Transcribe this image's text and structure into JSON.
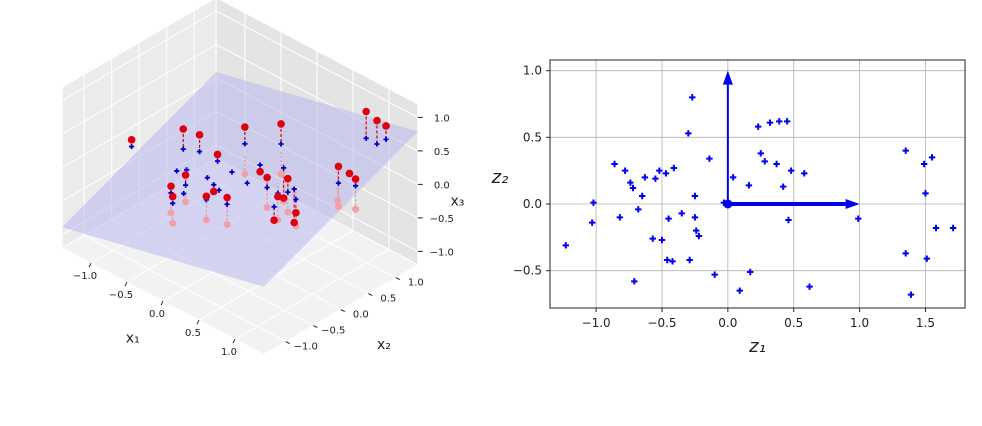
{
  "chart_data": [
    {
      "type": "scatter",
      "panel": "3d",
      "xlabel": "x₁",
      "ylabel": "x₂",
      "zlabel": "x₃",
      "xlim": [
        -1.4,
        1.4
      ],
      "ylim": [
        -1.4,
        1.4
      ],
      "zlim": [
        -1.2,
        1.2
      ],
      "xticks": [
        "−1.0",
        "−0.5",
        "0.0",
        "0.5",
        "1.0"
      ],
      "yticks": [
        "−1.0",
        "−0.5",
        "0.0",
        "0.5",
        "1.0"
      ],
      "zticks": [
        "−1.0",
        "−0.5",
        "0.0",
        "0.5",
        "1.0"
      ],
      "grid": true,
      "plane_color": "#b4b4f0",
      "series": [
        {
          "marker": "circle",
          "color": "#e0000c",
          "desc": "points above plane",
          "points": [
            [
              -1.2,
              -0.4,
              0.05
            ],
            [
              -0.75,
              -0.05,
              0.3
            ],
            [
              -0.6,
              0.05,
              0.25
            ],
            [
              -0.2,
              0.35,
              0.45
            ],
            [
              0.15,
              0.55,
              0.6
            ],
            [
              -0.45,
              -0.4,
              -0.05
            ],
            [
              -0.5,
              -0.6,
              -0.15
            ],
            [
              -0.4,
              -0.7,
              -0.2
            ],
            [
              0.3,
              0.1,
              0.1
            ],
            [
              0.55,
              0.15,
              0.2
            ],
            [
              0.95,
              1.05,
              1.0
            ],
            [
              1.1,
              1.05,
              0.95
            ],
            [
              1.15,
              1.15,
              0.85
            ],
            [
              1.1,
              0.35,
              0.6
            ],
            [
              1.3,
              0.4,
              0.5
            ],
            [
              1.1,
              0.55,
              0.4
            ],
            [
              0.05,
              -0.3,
              -0.15
            ],
            [
              -0.2,
              -0.35,
              -0.25
            ],
            [
              0.45,
              0.1,
              -0.1
            ],
            [
              0.7,
              0.1,
              -0.2
            ],
            [
              0.55,
              -0.1,
              -0.3
            ],
            [
              0.05,
              0.3,
              -0.05
            ],
            [
              -0.35,
              0.05,
              0.1
            ],
            [
              0.3,
              0.4,
              -0.35
            ],
            [
              -0.25,
              -0.15,
              -0.3
            ],
            [
              0.6,
              0.2,
              -0.45
            ]
          ]
        },
        {
          "marker": "plus",
          "color": "#0000cc",
          "desc": "projected points on plane",
          "points": [
            [
              -1.2,
              -0.4,
              -0.05
            ],
            [
              -0.75,
              -0.05,
              0.0
            ],
            [
              -0.6,
              0.05,
              0.0
            ],
            [
              -0.2,
              0.35,
              0.2
            ],
            [
              0.15,
              0.55,
              0.3
            ],
            [
              -0.45,
              -0.4,
              -0.2
            ],
            [
              -0.5,
              -0.6,
              -0.25
            ],
            [
              -0.4,
              -0.7,
              -0.3
            ],
            [
              0.3,
              0.1,
              -0.05
            ],
            [
              0.55,
              0.15,
              0.0
            ],
            [
              0.95,
              1.05,
              0.6
            ],
            [
              1.1,
              1.05,
              0.6
            ],
            [
              1.15,
              1.15,
              0.65
            ],
            [
              1.1,
              0.35,
              0.35
            ],
            [
              1.3,
              0.4,
              0.4
            ],
            [
              1.1,
              0.55,
              0.4
            ],
            [
              0.05,
              -0.3,
              -0.25
            ],
            [
              -0.2,
              -0.35,
              -0.3
            ],
            [
              0.45,
              0.1,
              -0.05
            ],
            [
              0.7,
              0.1,
              0.0
            ],
            [
              0.55,
              -0.1,
              -0.1
            ],
            [
              0.05,
              0.3,
              0.05
            ],
            [
              -0.35,
              0.05,
              0.0
            ],
            [
              0.3,
              0.4,
              0.1
            ],
            [
              -0.25,
              -0.15,
              -0.2
            ],
            [
              0.6,
              0.2,
              0.05
            ],
            [
              -0.55,
              -0.25,
              -0.1
            ],
            [
              -0.3,
              -0.2,
              -0.1
            ],
            [
              -0.15,
              0.05,
              -0.05
            ],
            [
              0.1,
              0.0,
              -0.05
            ],
            [
              -0.65,
              -0.3,
              -0.15
            ],
            [
              -0.1,
              -0.25,
              -0.15
            ],
            [
              0.9,
              0.6,
              0.35
            ],
            [
              -0.4,
              -0.5,
              -0.25
            ]
          ]
        },
        {
          "marker": "circle",
          "color": "#f0a0a8",
          "desc": "points below plane",
          "points": [
            [
              -0.2,
              0.35,
              -0.25
            ],
            [
              0.15,
              0.55,
              -0.15
            ],
            [
              -0.45,
              -0.4,
              -0.45
            ],
            [
              -0.5,
              -0.6,
              -0.55
            ],
            [
              -0.4,
              -0.7,
              -0.6
            ],
            [
              0.3,
              0.1,
              -0.35
            ],
            [
              0.55,
              0.15,
              -0.3
            ],
            [
              1.1,
              0.35,
              0.0
            ],
            [
              1.3,
              0.4,
              0.05
            ],
            [
              0.05,
              -0.3,
              -0.55
            ],
            [
              -0.2,
              -0.35,
              -0.6
            ],
            [
              0.45,
              0.1,
              -0.45
            ],
            [
              0.7,
              0.1,
              -0.4
            ],
            [
              0.3,
              0.4,
              -0.4
            ],
            [
              0.9,
              0.6,
              -0.15
            ]
          ]
        }
      ]
    },
    {
      "type": "scatter",
      "panel": "2d",
      "xlabel": "z₁",
      "ylabel": "z₂",
      "xlim": [
        -1.35,
        1.8
      ],
      "ylim": [
        -0.78,
        1.08
      ],
      "xticks": [
        -1.0,
        -0.5,
        0.0,
        0.5,
        1.0,
        1.5
      ],
      "xtick_labels": [
        "−1.0",
        "−0.5",
        "0.0",
        "0.5",
        "1.0",
        "1.5"
      ],
      "yticks": [
        -0.5,
        0.0,
        0.5,
        1.0
      ],
      "ytick_labels": [
        "−0.5",
        "0.0",
        "0.5",
        "1.0"
      ],
      "grid": true,
      "series": [
        {
          "marker": "plus",
          "color": "#0000ee",
          "x": [
            -1.23,
            -1.02,
            -1.03,
            -0.86,
            -0.82,
            -0.78,
            -0.74,
            -0.72,
            -0.71,
            -0.68,
            -0.65,
            -0.63,
            -0.57,
            -0.55,
            -0.52,
            -0.5,
            -0.47,
            -0.46,
            -0.45,
            -0.42,
            -0.41,
            -0.35,
            -0.3,
            -0.29,
            -0.27,
            -0.25,
            -0.25,
            -0.24,
            -0.22,
            -0.14,
            -0.1,
            -0.03,
            0.04,
            0.09,
            0.16,
            0.17,
            0.23,
            0.25,
            0.28,
            0.32,
            0.37,
            0.39,
            0.42,
            0.45,
            0.46,
            0.48,
            0.58,
            0.62,
            0.99,
            1.35,
            1.35,
            1.39,
            1.49,
            1.51,
            1.5,
            1.55,
            1.58,
            1.71
          ],
          "y": [
            -0.31,
            0.01,
            -0.14,
            0.3,
            -0.1,
            0.25,
            0.16,
            0.12,
            -0.58,
            -0.04,
            0.06,
            0.2,
            -0.26,
            0.19,
            0.25,
            -0.27,
            0.23,
            -0.42,
            -0.11,
            -0.43,
            0.27,
            -0.07,
            0.53,
            -0.42,
            0.8,
            0.06,
            -0.1,
            -0.2,
            -0.24,
            0.34,
            -0.53,
            0.01,
            0.2,
            -0.65,
            0.14,
            -0.51,
            0.58,
            0.38,
            0.32,
            0.61,
            0.3,
            0.62,
            0.13,
            0.62,
            -0.12,
            0.25,
            0.23,
            -0.62,
            -0.11,
            0.4,
            -0.37,
            -0.68,
            0.3,
            -0.41,
            0.08,
            0.35,
            -0.18,
            -0.18
          ]
        }
      ],
      "arrows": [
        {
          "from": [
            0,
            0
          ],
          "to": [
            0,
            1.0
          ],
          "color": "#0000ee"
        },
        {
          "from": [
            0,
            0
          ],
          "to": [
            1.0,
            0
          ],
          "color": "#0000ee"
        }
      ]
    }
  ]
}
